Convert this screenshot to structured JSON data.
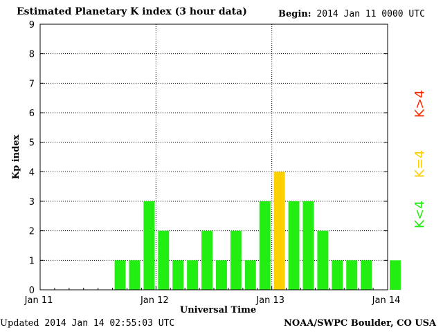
{
  "header": {
    "title": "Estimated Planetary K index (3 hour data)",
    "begin_label": "Begin:",
    "begin_value": "2014 Jan 11 0000 UTC"
  },
  "footer": {
    "updated_label": "Updated",
    "updated_value": "2014 Jan 14 02:55:03 UTC",
    "credit": "NOAA/SWPC Boulder, CO USA"
  },
  "legend": [
    {
      "label": "K>4",
      "color": "#ff2a00"
    },
    {
      "label": "K=4",
      "color": "#ffd000"
    },
    {
      "label": "K<4",
      "color": "#22ee11"
    }
  ],
  "chart_data": {
    "type": "bar",
    "xlabel": "Universal Time",
    "ylabel": "Kp index",
    "ylim": [
      0,
      9
    ],
    "yticks": [
      "0",
      "1",
      "2",
      "3",
      "4",
      "5",
      "6",
      "7",
      "8",
      "9"
    ],
    "xticks": [
      "Jan 11",
      "Jan 12",
      "Jan 13",
      "Jan 14"
    ],
    "bins_per_day": 8,
    "grid": true,
    "values": [
      0,
      0,
      0,
      0,
      0,
      1,
      1,
      3,
      2,
      1,
      1,
      2,
      1,
      2,
      1,
      3,
      4,
      3,
      3,
      2,
      1,
      1,
      1,
      0,
      1
    ],
    "colors": {
      "below": "#22ee11",
      "equal": "#ffd000",
      "above": "#ff2a00"
    }
  }
}
